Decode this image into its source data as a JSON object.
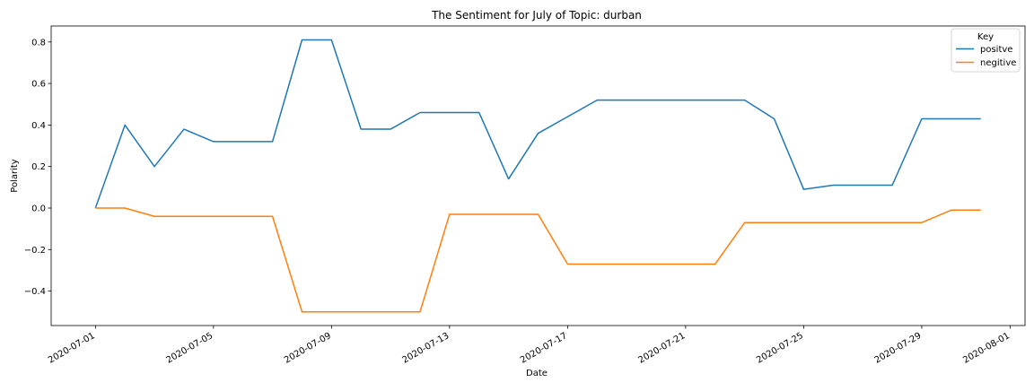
{
  "chart_data": {
    "type": "line",
    "title": "The Sentiment for July of Topic: durban",
    "xlabel": "Date",
    "ylabel": "Polarity",
    "x": [
      "2020-07-01",
      "2020-07-02",
      "2020-07-03",
      "2020-07-04",
      "2020-07-05",
      "2020-07-06",
      "2020-07-07",
      "2020-07-08",
      "2020-07-09",
      "2020-07-10",
      "2020-07-11",
      "2020-07-12",
      "2020-07-13",
      "2020-07-14",
      "2020-07-15",
      "2020-07-16",
      "2020-07-17",
      "2020-07-18",
      "2020-07-19",
      "2020-07-20",
      "2020-07-21",
      "2020-07-22",
      "2020-07-23",
      "2020-07-24",
      "2020-07-25",
      "2020-07-26",
      "2020-07-27",
      "2020-07-28",
      "2020-07-29",
      "2020-07-30",
      "2020-07-31"
    ],
    "series": [
      {
        "name": "positve",
        "color": "#1f77b4",
        "values": [
          0.0,
          0.4,
          0.2,
          0.38,
          0.32,
          0.32,
          0.32,
          0.81,
          0.81,
          0.38,
          0.38,
          0.46,
          0.46,
          0.46,
          0.14,
          0.36,
          0.44,
          0.52,
          0.52,
          0.52,
          0.52,
          0.52,
          0.52,
          0.43,
          0.09,
          0.11,
          0.11,
          0.11,
          0.43,
          0.43,
          0.43
        ]
      },
      {
        "name": "negitive",
        "color": "#ff7f0e",
        "values": [
          0.0,
          0.0,
          -0.04,
          -0.04,
          -0.04,
          -0.04,
          -0.04,
          -0.5,
          -0.5,
          -0.5,
          -0.5,
          -0.5,
          -0.03,
          -0.03,
          -0.03,
          -0.03,
          -0.27,
          -0.27,
          -0.27,
          -0.27,
          -0.27,
          -0.27,
          -0.07,
          -0.07,
          -0.07,
          -0.07,
          -0.07,
          -0.07,
          -0.07,
          -0.01,
          -0.01
        ]
      }
    ],
    "xticks": [
      "2020-07-01",
      "2020-07-05",
      "2020-07-09",
      "2020-07-13",
      "2020-07-17",
      "2020-07-21",
      "2020-07-25",
      "2020-07-29",
      "2020-08-01"
    ],
    "yticks": [
      -0.4,
      -0.2,
      0.0,
      0.2,
      0.4,
      0.6,
      0.8
    ],
    "ytick_labels": [
      "−0.4",
      "−0.2",
      "0.0",
      "0.2",
      "0.4",
      "0.6",
      "0.8"
    ],
    "xlim": [
      "2020-06-29T12:00",
      "2020-08-01T12:00"
    ],
    "ylim": [
      -0.566,
      0.877
    ],
    "grid": false,
    "legend": {
      "title": "Key",
      "placement": "top-right"
    }
  }
}
